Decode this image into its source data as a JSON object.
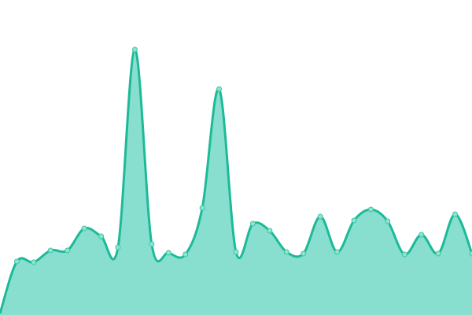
{
  "chart_data": {
    "type": "area",
    "title": "",
    "xlabel": "",
    "ylabel": "",
    "x": [
      0,
      1,
      2,
      3,
      4,
      5,
      6,
      7,
      8,
      9,
      10,
      11,
      12,
      13,
      14,
      15,
      16,
      17,
      18,
      19,
      20,
      21,
      22,
      23,
      24,
      25,
      26,
      27,
      28
    ],
    "values": [
      2,
      68,
      67,
      82,
      82,
      110,
      100,
      86,
      337,
      90,
      79,
      77,
      136,
      287,
      80,
      116,
      107,
      80,
      78,
      125,
      80,
      120,
      134,
      119,
      77,
      102,
      78,
      128,
      78
    ],
    "ylim": [
      0,
      400
    ],
    "grid": false,
    "smooth": true,
    "colors": {
      "fill": "#88dfcf",
      "line": "#1dba97",
      "marker_fill": "#8fe3cf",
      "marker_stroke": "#3cc7a4"
    }
  }
}
